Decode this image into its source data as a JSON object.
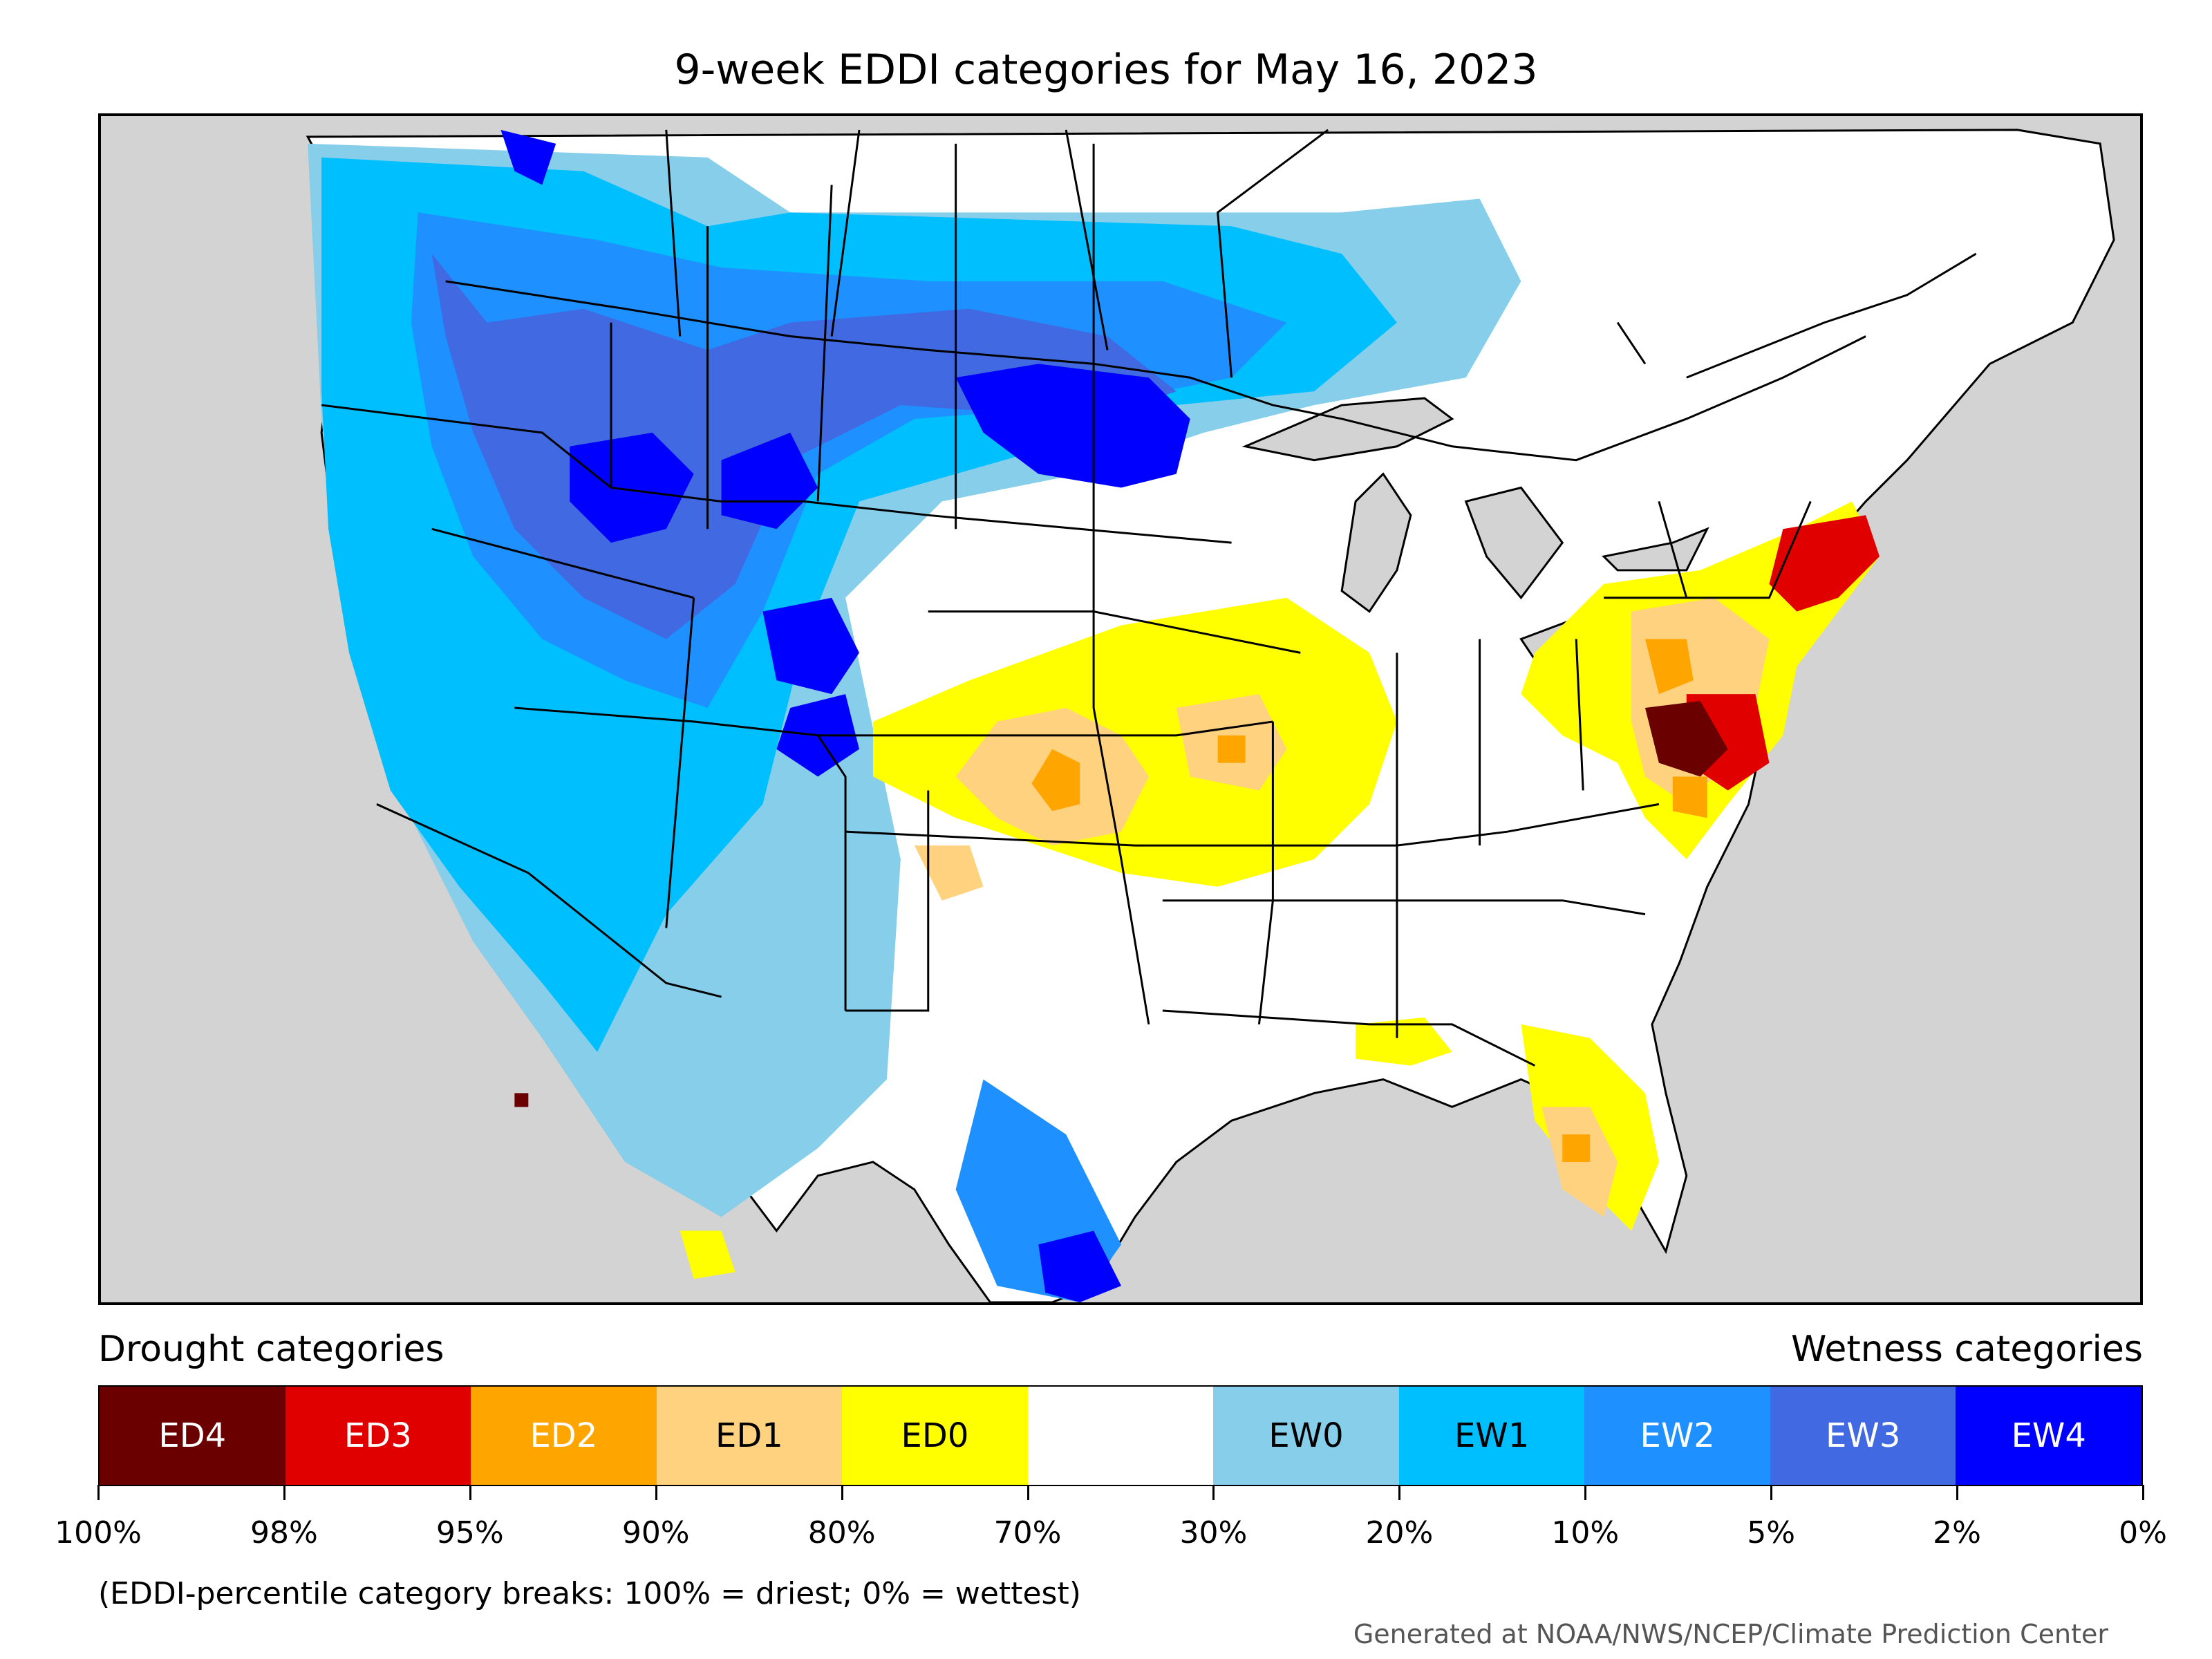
{
  "title": "9-week EDDI categories for May 16, 2023",
  "legend": {
    "drought_heading": "Drought categories",
    "wetness_heading": "Wetness categories",
    "categories": [
      {
        "label": "ED4",
        "color": "#6b0000",
        "text_color": "#ffffff"
      },
      {
        "label": "ED3",
        "color": "#e00000",
        "text_color": "#ffffff"
      },
      {
        "label": "ED2",
        "color": "#ffa500",
        "text_color": "#ffffff"
      },
      {
        "label": "ED1",
        "color": "#ffd27f",
        "text_color": "#000000"
      },
      {
        "label": "ED0",
        "color": "#ffff00",
        "text_color": "#000000"
      },
      {
        "label": "",
        "color": "#ffffff",
        "text_color": "#000000"
      },
      {
        "label": "EW0",
        "color": "#87ceeb",
        "text_color": "#000000"
      },
      {
        "label": "EW1",
        "color": "#00bfff",
        "text_color": "#000000"
      },
      {
        "label": "EW2",
        "color": "#1e90ff",
        "text_color": "#ffffff"
      },
      {
        "label": "EW3",
        "color": "#4169e1",
        "text_color": "#ffffff"
      },
      {
        "label": "EW4",
        "color": "#0000ff",
        "text_color": "#ffffff"
      }
    ],
    "tick_labels": [
      "100%",
      "98%",
      "95%",
      "90%",
      "80%",
      "70%",
      "30%",
      "20%",
      "10%",
      "5%",
      "2%",
      "0%"
    ],
    "footnote": "(EDDI-percentile category breaks: 100% = driest; 0% = wettest)"
  },
  "credit": "Generated at NOAA/NWS/NCEP/Climate Prediction Center"
}
